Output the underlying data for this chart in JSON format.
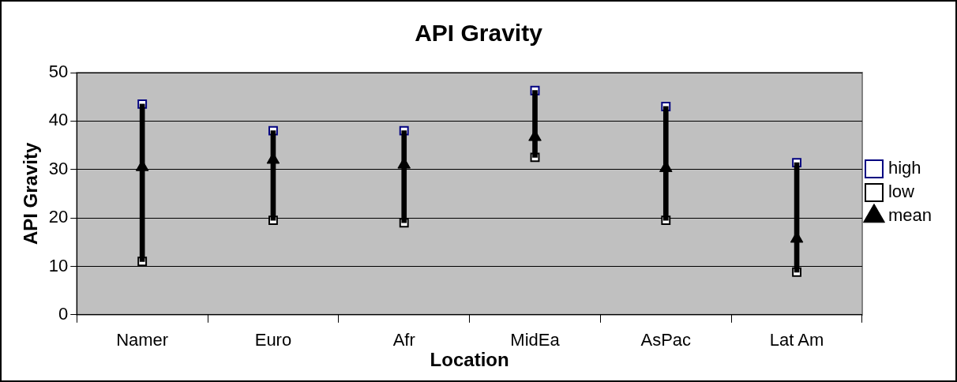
{
  "chart_data": {
    "type": "bar",
    "title": "API Gravity",
    "xlabel": "Location",
    "ylabel": "API Gravity",
    "categories": [
      "Namer",
      "Euro",
      "Afr",
      "MidEa",
      "AsPac",
      "Lat Am"
    ],
    "series": [
      {
        "color": "#000000",
        "base": [
          11.0,
          19.5,
          19.0,
          32.5,
          19.5,
          8.8
        ],
        "values": [
          32.5,
          18.5,
          19.0,
          13.8,
          23.5,
          22.6
        ]
      },
      {
        "name": "high",
        "type": "scatter",
        "marker": "square",
        "color": "#000080",
        "values": [
          43.5,
          38.0,
          38.0,
          46.3,
          43.0,
          31.4
        ]
      },
      {
        "name": "low",
        "type": "scatter",
        "marker": "square",
        "color": "#000000",
        "values": [
          11.0,
          19.5,
          19.0,
          32.5,
          19.5,
          8.8
        ]
      },
      {
        "name": "mean",
        "type": "scatter",
        "marker": "triangle",
        "color": "#000000",
        "values": [
          30.5,
          32.0,
          31.0,
          36.7,
          30.3,
          15.7
        ]
      }
    ],
    "ylim": [
      0,
      50
    ],
    "yticks": [
      0,
      10,
      20,
      30,
      40,
      50
    ],
    "grid": "y",
    "legend": "right"
  }
}
